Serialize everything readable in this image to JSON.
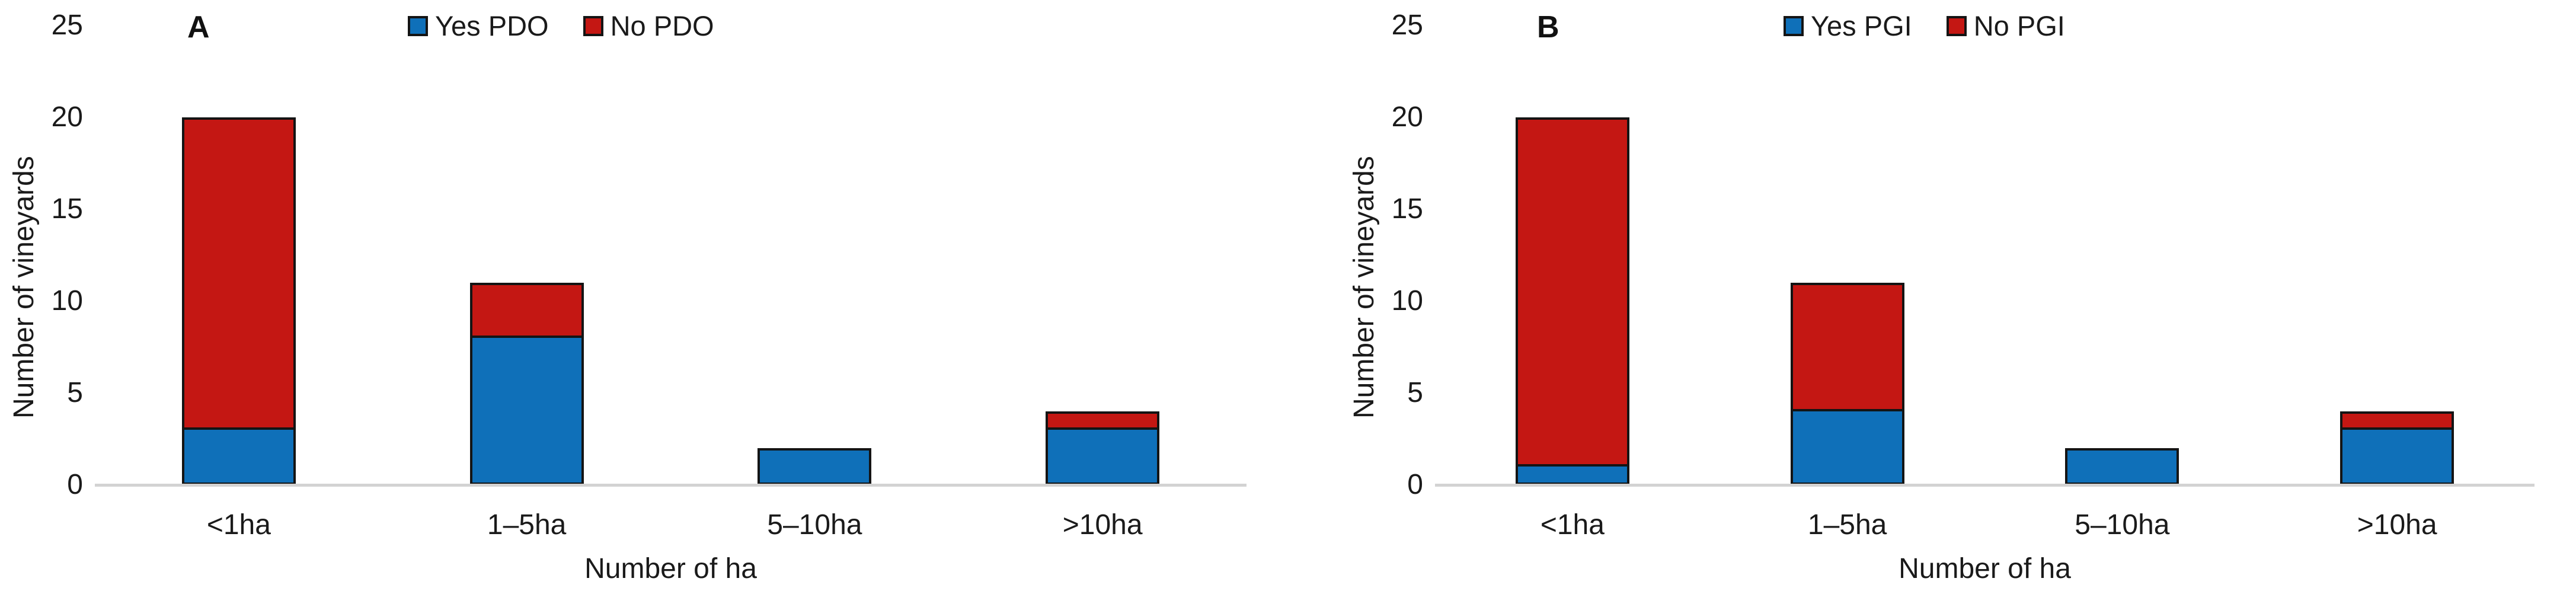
{
  "page": {
    "background": "#FFFFFF",
    "text_color": "#1A1A1A",
    "baseline_color": "#D3D3D3",
    "bar_outline_color": "#141414"
  },
  "chart_data": [
    {
      "type": "bar",
      "stacked": true,
      "panel_label": "A",
      "title": "",
      "categories": [
        "<1ha",
        "1–5ha",
        "5–10ha",
        ">10ha"
      ],
      "series": [
        {
          "name": "Yes PDO",
          "color": "#0F70B9",
          "values": [
            3,
            8,
            2,
            3
          ]
        },
        {
          "name": "No PDO",
          "color": "#C41713",
          "values": [
            17,
            3,
            0,
            1
          ]
        }
      ],
      "stack_totals": [
        20,
        11,
        2,
        4
      ],
      "xlabel": "Number of ha",
      "ylabel": "Number of vineyards",
      "yticks": [
        "0",
        "5",
        "10",
        "15",
        "20",
        "25"
      ],
      "ylim": [
        0,
        25
      ],
      "grid": false,
      "legend_position": "top"
    },
    {
      "type": "bar",
      "stacked": true,
      "panel_label": "B",
      "title": "",
      "categories": [
        "<1ha",
        "1–5ha",
        "5–10ha",
        ">10ha"
      ],
      "series": [
        {
          "name": "Yes PGI",
          "color": "#0F70B9",
          "values": [
            1,
            4,
            2,
            3
          ]
        },
        {
          "name": "No PGI",
          "color": "#C41713",
          "values": [
            19,
            7,
            0,
            1
          ]
        }
      ],
      "stack_totals": [
        20,
        11,
        2,
        4
      ],
      "xlabel": "Number of ha",
      "ylabel": "Number of vineyards",
      "yticks": [
        "0",
        "5",
        "10",
        "15",
        "20",
        "25"
      ],
      "ylim": [
        0,
        25
      ],
      "grid": false,
      "legend_position": "top"
    }
  ]
}
